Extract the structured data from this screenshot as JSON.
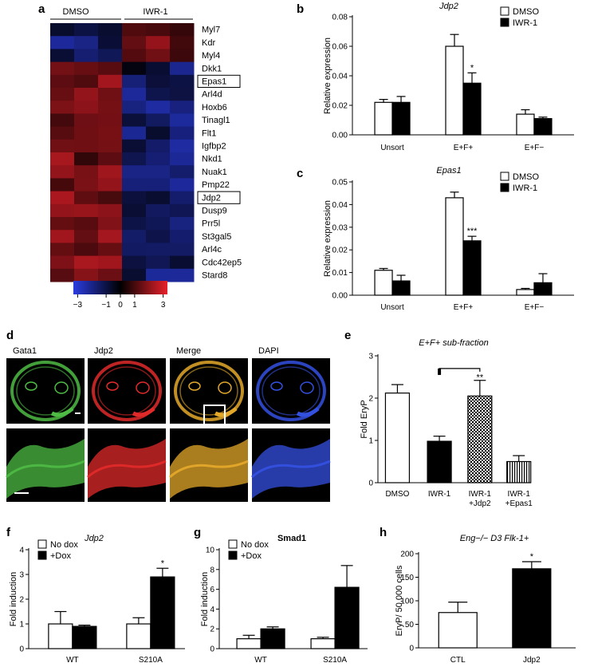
{
  "panel_labels": [
    "a",
    "b",
    "c",
    "d",
    "e",
    "f",
    "g",
    "h"
  ],
  "heatmap": {
    "groups": [
      "DMSO",
      "IWR-1"
    ],
    "genes": [
      "Myl7",
      "Kdr",
      "Myl4",
      "Dkk1",
      "Epas1",
      "Arl4d",
      "Hoxb6",
      "Tinagl1",
      "Flt1",
      "Igfbp2",
      "Nkd1",
      "Nuak1",
      "Pmp22",
      "Jdp2",
      "Dusp9",
      "Prr5l",
      "St3gal5",
      "Arl4c",
      "Cdc42ep5",
      "Stard8"
    ],
    "boxed_genes": [
      "Epas1",
      "Jdp2"
    ],
    "scale_ticks": [
      "−3",
      "−1",
      "0",
      "1",
      "3"
    ],
    "scale_colors": [
      "#2a3ce0",
      "#000000",
      "#e8202a"
    ]
  },
  "microscopy": {
    "columns": [
      "Gata1",
      "Jdp2",
      "Merge",
      "DAPI"
    ],
    "column_colors": [
      "#4dbb44",
      "#e02a2a",
      "#e3a82a",
      "#3450e0"
    ]
  },
  "chart_data": [
    {
      "panel": "b",
      "type": "bar",
      "title": "Jdp2",
      "xlabel": "",
      "ylabel": "Relative expression",
      "categories": [
        "Unsort",
        "E+F+",
        "E+F−"
      ],
      "ylim": [
        0,
        0.08
      ],
      "yticks": [
        "0.00",
        "0.02",
        "0.04",
        "0.06",
        "0.08"
      ],
      "series": [
        {
          "name": "DMSO",
          "values": [
            0.022,
            0.06,
            0.014
          ],
          "errors": [
            0.002,
            0.008,
            0.003
          ]
        },
        {
          "name": "IWR-1",
          "values": [
            0.022,
            0.035,
            0.011
          ],
          "errors": [
            0.004,
            0.007,
            0.001
          ]
        }
      ],
      "annotations": [
        {
          "text": "*",
          "category": "E+F+",
          "series": "IWR-1"
        }
      ],
      "legend": "top-right"
    },
    {
      "panel": "c",
      "type": "bar",
      "title": "Epas1",
      "xlabel": "",
      "ylabel": "Relative expression",
      "categories": [
        "Unsort",
        "E+F+",
        "E+F−"
      ],
      "ylim": [
        0,
        0.05
      ],
      "yticks": [
        "0.00",
        "0.01",
        "0.02",
        "0.03",
        "0.04",
        "0.05"
      ],
      "series": [
        {
          "name": "DMSO",
          "values": [
            0.011,
            0.043,
            0.0025
          ],
          "errors": [
            0.0008,
            0.0025,
            0.0005
          ]
        },
        {
          "name": "IWR-1",
          "values": [
            0.0063,
            0.024,
            0.0055
          ],
          "errors": [
            0.0025,
            0.002,
            0.004
          ]
        }
      ],
      "annotations": [
        {
          "text": "***",
          "category": "E+F+",
          "series": "IWR-1"
        }
      ],
      "legend": "top-right"
    },
    {
      "panel": "e",
      "type": "bar",
      "title": "E+F+ sub-fraction",
      "xlabel": "",
      "ylabel": "Fold EryP",
      "categories": [
        "DMSO",
        "IWR-1",
        "IWR-1\n+Jdp2",
        "IWR-1\n+Epas1"
      ],
      "ylim": [
        0,
        3
      ],
      "yticks": [
        "0",
        "1",
        "2",
        "3"
      ],
      "values": [
        2.12,
        0.98,
        2.05,
        0.5
      ],
      "errors": [
        0.2,
        0.12,
        0.37,
        0.14
      ],
      "fills": [
        "white",
        "black",
        "checker",
        "stripes"
      ],
      "annotations": [
        {
          "text": "**",
          "bracket": [
            "IWR-1",
            "IWR-1\n+Jdp2"
          ]
        }
      ]
    },
    {
      "panel": "f",
      "type": "bar",
      "title": "Jdp2",
      "xlabel": "",
      "ylabel": "Fold induction",
      "categories": [
        "WT",
        "S210A"
      ],
      "ylim": [
        0,
        4
      ],
      "yticks": [
        "0",
        "1",
        "2",
        "3",
        "4"
      ],
      "series": [
        {
          "name": "No dox",
          "values": [
            1.0,
            1.0
          ],
          "errors": [
            0.5,
            0.25
          ]
        },
        {
          "name": "+Dox",
          "values": [
            0.9,
            2.9
          ],
          "errors": [
            0.05,
            0.35
          ]
        }
      ],
      "annotations": [
        {
          "text": "*",
          "category": "S210A",
          "series": "+Dox"
        }
      ],
      "legend": "top-left"
    },
    {
      "panel": "g",
      "type": "bar",
      "title": "Smad1",
      "xlabel": "",
      "ylabel": "Fold induction",
      "categories": [
        "WT",
        "S210A"
      ],
      "ylim": [
        0,
        10
      ],
      "yticks": [
        "0",
        "2",
        "4",
        "6",
        "8",
        "10"
      ],
      "series": [
        {
          "name": "No dox",
          "values": [
            1.0,
            1.0
          ],
          "errors": [
            0.35,
            0.15
          ]
        },
        {
          "name": "+Dox",
          "values": [
            2.0,
            6.2
          ],
          "errors": [
            0.2,
            2.2
          ]
        }
      ],
      "legend": "top-left"
    },
    {
      "panel": "h",
      "type": "bar",
      "title": "Eng−/− D3 Flk-1+",
      "xlabel": "",
      "ylabel": "EryP/ 50,000 cells",
      "categories": [
        "CTL",
        "Jdp2"
      ],
      "ylim": [
        0,
        200
      ],
      "yticks": [
        "0",
        "50",
        "100",
        "150",
        "200"
      ],
      "values": [
        75,
        168
      ],
      "errors": [
        22,
        15
      ],
      "fills": [
        "white",
        "black"
      ],
      "annotations": [
        {
          "text": "*",
          "category": "Jdp2"
        }
      ]
    }
  ]
}
